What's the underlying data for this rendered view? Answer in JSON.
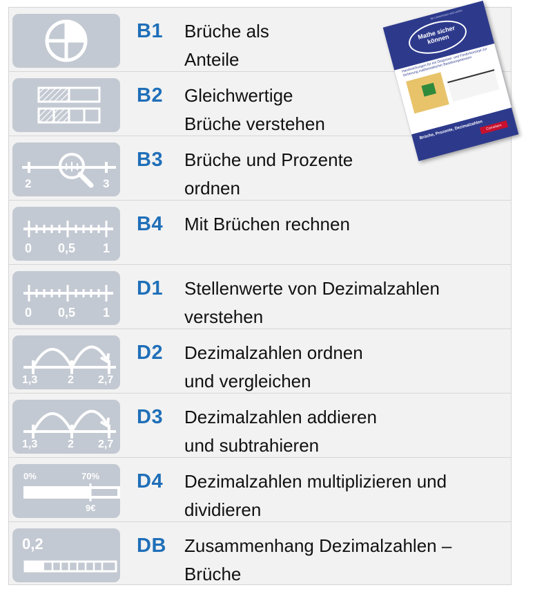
{
  "book": {
    "series_title": "Mathe sicher können",
    "top_text": "für Lehrerinnen und Lehrer",
    "subtitle": "Handreichungen für ein Diagnose- und Förderkonzept zur Sicherung mathematischer Basiskompetenzen",
    "title": "Brüche, Prozente, Dezimalzahlen",
    "publisher": "Cornelsen"
  },
  "rows": [
    {
      "code": "B1",
      "title": "Brüche als\nAnteile",
      "icon": "fraction-circle-icon"
    },
    {
      "code": "B2",
      "title": "Gleichwertige\nBrüche verstehen",
      "icon": "fraction-bars-icon"
    },
    {
      "code": "B3",
      "title": "Brüche und Prozente\n ordnen",
      "icon": "numberline-magnifier-icon",
      "labels": [
        "2",
        "3"
      ]
    },
    {
      "code": "B4",
      "title": "Mit Brüchen rechnen",
      "icon": "numberline-icon",
      "labels": [
        "0",
        "0,5",
        "1"
      ]
    },
    {
      "code": "D1",
      "title": "Stellenwerte von Dezimalzahlen\nverstehen",
      "icon": "numberline-icon",
      "labels": [
        "0",
        "0,5",
        "1"
      ]
    },
    {
      "code": "D2",
      "title": "Dezimalzahlen ordnen\nund vergleichen",
      "icon": "jump-arcs-icon",
      "labels": [
        "1,3",
        "2",
        "2,7"
      ]
    },
    {
      "code": "D3",
      "title": "Dezimalzahlen addieren\nund subtrahieren",
      "icon": "jump-arcs-icon",
      "labels": [
        "1,3",
        "2",
        "2,7"
      ]
    },
    {
      "code": "D4",
      "title": "Dezimalzahlen multiplizieren und\ndividieren",
      "icon": "percent-bar-icon",
      "labels": [
        "0%",
        "70%",
        "9€"
      ]
    },
    {
      "code": "DB",
      "title": "Zusammenhang Dezimalzahlen –\nBrüche",
      "icon": "decimal-bar-icon",
      "labels": [
        "0,2"
      ]
    }
  ],
  "colors": {
    "code": "#1f6fb8",
    "icon_bg": "#c3c9d2",
    "row_bg": "#f2f2f2"
  }
}
